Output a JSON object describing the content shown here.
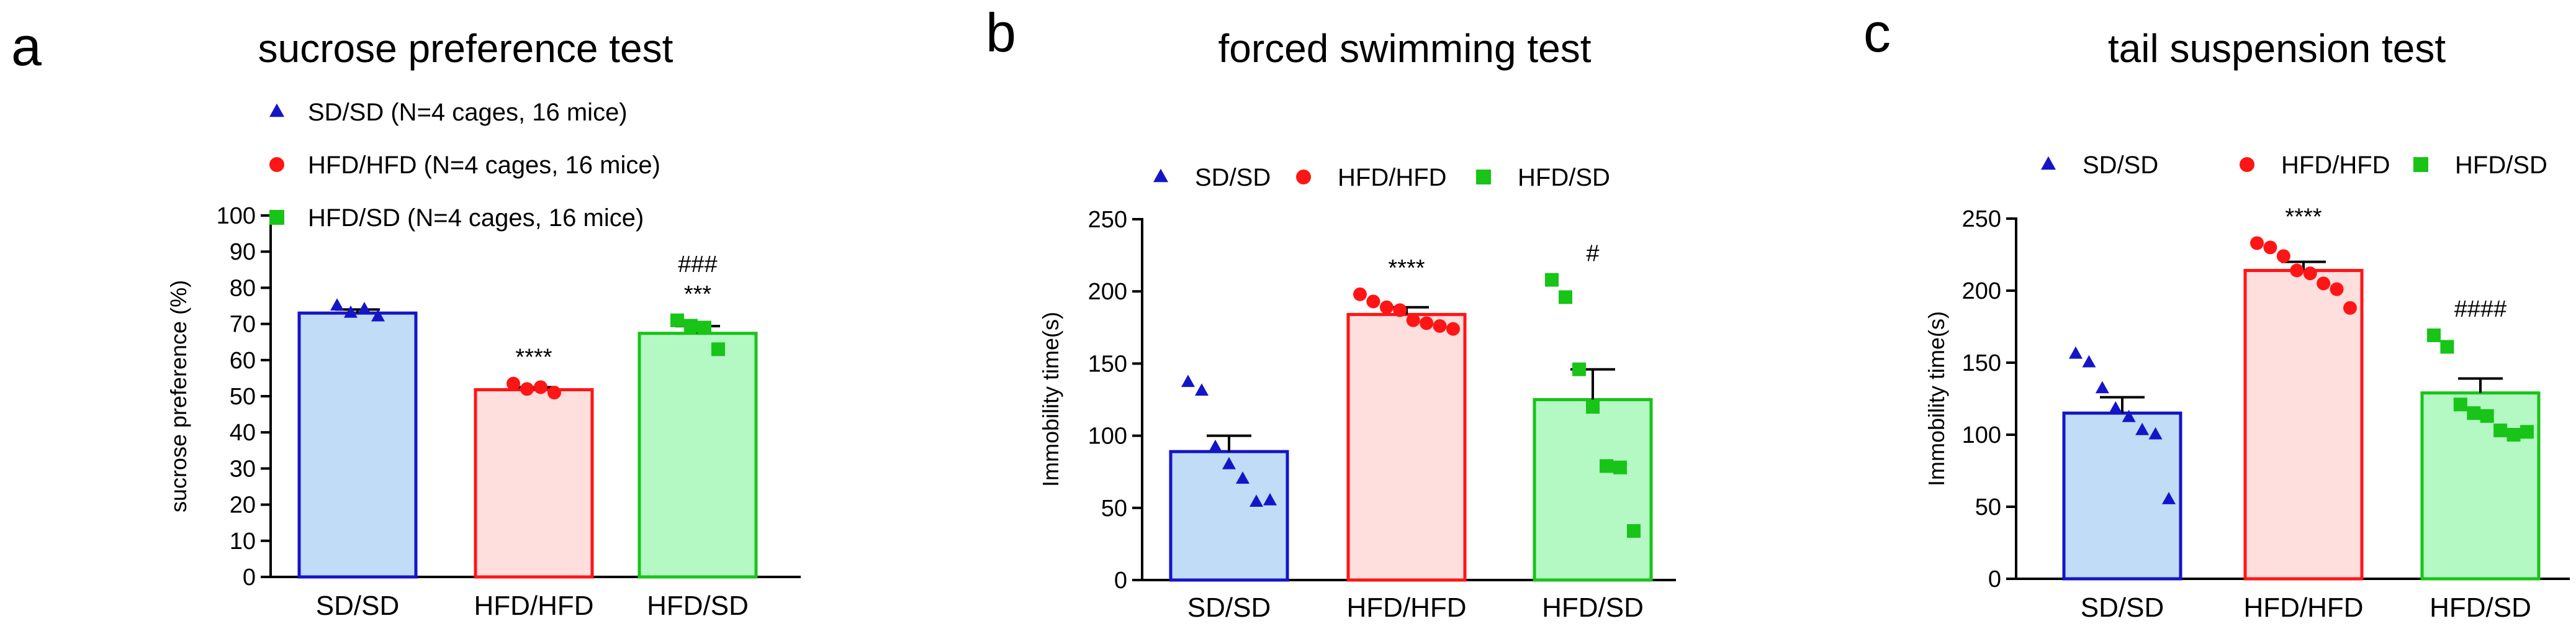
{
  "colors": {
    "SD/SD": {
      "stroke": "#1515c8",
      "fill": "#c0dcf6"
    },
    "HFD/HFD": {
      "stroke": "#ff1515",
      "fill": "#ffdede"
    },
    "HFD/SD": {
      "stroke": "#18c418",
      "fill": "#b4f8c4"
    },
    "error_bar": "#000000"
  },
  "chart_data": [
    {
      "type": "bar",
      "panel": "a",
      "title": "sucrose preference test",
      "xlabel": "",
      "ylabel": "sucrose preference (%)",
      "ylim": [
        0,
        100
      ],
      "yticks": [
        0,
        10,
        20,
        30,
        40,
        50,
        60,
        70,
        80,
        90,
        100
      ],
      "legend_position": "top-left",
      "legend": [
        {
          "group": "SD/SD",
          "label": "SD/SD (N=4 cages, 16 mice)",
          "marker": "triangle"
        },
        {
          "group": "HFD/HFD",
          "label": "HFD/HFD (N=4 cages, 16 mice)",
          "marker": "circle"
        },
        {
          "group": "HFD/SD",
          "label": "HFD/SD (N=4 cages, 16 mice)",
          "marker": "square"
        }
      ],
      "categories": [
        "SD/SD",
        "HFD/HFD",
        "HFD/SD"
      ],
      "series": [
        {
          "name": "SD/SD",
          "mean": 73,
          "sem": 1,
          "marker": "triangle",
          "points": [
            75,
            73,
            74,
            72
          ],
          "annotations": []
        },
        {
          "name": "HFD/HFD",
          "mean": 51.8,
          "sem": 0.7,
          "marker": "circle",
          "points": [
            53.5,
            52,
            52.5,
            51
          ],
          "annotations": [
            "****"
          ]
        },
        {
          "name": "HFD/SD",
          "mean": 67.4,
          "sem": 2,
          "marker": "square",
          "points": [
            71,
            69.5,
            69,
            63
          ],
          "annotations": [
            "###",
            "***"
          ]
        }
      ]
    },
    {
      "type": "bar",
      "panel": "b",
      "title": "forced swimming test",
      "xlabel": "",
      "ylabel": "Immobility time(s)",
      "ylim": [
        0,
        250
      ],
      "yticks": [
        0,
        50,
        100,
        150,
        200,
        250
      ],
      "legend_position": "top",
      "legend": [
        {
          "group": "SD/SD",
          "label": "SD/SD",
          "marker": "triangle"
        },
        {
          "group": "HFD/HFD",
          "label": "HFD/HFD",
          "marker": "circle"
        },
        {
          "group": "HFD/SD",
          "label": "HFD/SD",
          "marker": "square"
        }
      ],
      "categories": [
        "SD/SD",
        "HFD/HFD",
        "HFD/SD"
      ],
      "series": [
        {
          "name": "SD/SD",
          "mean": 89,
          "sem": 11,
          "marker": "triangle",
          "points": [
            137,
            131,
            92,
            80,
            70,
            54,
            55
          ],
          "annotations": []
        },
        {
          "name": "HFD/HFD",
          "mean": 184,
          "sem": 5,
          "marker": "circle",
          "points": [
            198,
            193,
            189,
            187,
            180,
            178,
            176,
            174
          ],
          "annotations": [
            "****"
          ]
        },
        {
          "name": "HFD/SD",
          "mean": 125,
          "sem": 21,
          "marker": "square",
          "points": [
            208,
            196,
            146,
            120,
            79,
            78,
            34
          ],
          "annotations": [
            "#"
          ]
        }
      ]
    },
    {
      "type": "bar",
      "panel": "c",
      "title": "tail suspension test",
      "xlabel": "",
      "ylabel": "Immobility time(s)",
      "ylim": [
        0,
        250
      ],
      "yticks": [
        0,
        50,
        100,
        150,
        200,
        250
      ],
      "legend_position": "top",
      "legend": [
        {
          "group": "SD/SD",
          "label": "SD/SD",
          "marker": "triangle"
        },
        {
          "group": "HFD/HFD",
          "label": "HFD/HFD",
          "marker": "circle"
        },
        {
          "group": "HFD/SD",
          "label": "HFD/SD",
          "marker": "square"
        }
      ],
      "categories": [
        "SD/SD",
        "HFD/HFD",
        "HFD/SD"
      ],
      "series": [
        {
          "name": "SD/SD",
          "mean": 115,
          "sem": 11,
          "marker": "triangle",
          "points": [
            156,
            150,
            132,
            118,
            112,
            103,
            100,
            55
          ],
          "annotations": []
        },
        {
          "name": "HFD/HFD",
          "mean": 214,
          "sem": 6,
          "marker": "circle",
          "points": [
            233,
            230,
            224,
            214,
            212,
            205,
            201,
            188
          ],
          "annotations": [
            "****"
          ]
        },
        {
          "name": "HFD/SD",
          "mean": 129,
          "sem": 10,
          "marker": "square",
          "points": [
            169,
            161,
            121,
            115,
            113,
            103,
            100,
            102
          ],
          "annotations": [
            "####"
          ]
        }
      ]
    }
  ]
}
